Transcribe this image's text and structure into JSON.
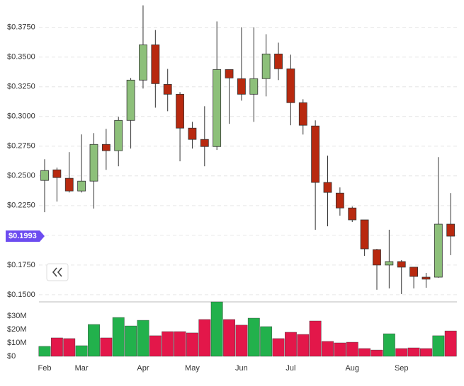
{
  "chart_data": [
    {
      "type": "candlestick",
      "categories": [
        "Feb",
        null,
        null,
        "Mar",
        null,
        null,
        null,
        null,
        "Apr",
        null,
        null,
        null,
        "May",
        null,
        null,
        null,
        "Jun",
        null,
        null,
        null,
        "Jul",
        null,
        null,
        null,
        null,
        "Aug",
        null,
        null,
        null,
        "Sep",
        null,
        null,
        null,
        null
      ],
      "open": [
        0.2462,
        0.2551,
        0.248,
        0.2373,
        0.2456,
        0.2765,
        0.2712,
        0.2967,
        0.3306,
        0.3603,
        0.327,
        0.3187,
        0.2902,
        0.2807,
        0.2747,
        0.3395,
        0.3318,
        0.3187,
        0.3318,
        0.3526,
        0.3401,
        0.3116,
        0.292,
        0.2445,
        0.2355,
        0.223,
        0.213,
        0.188,
        0.175,
        0.1779,
        0.1732,
        0.1648,
        0.1648,
        0.2094
      ],
      "high": [
        0.264,
        0.257,
        0.27,
        0.2849,
        0.286,
        0.2896,
        0.2997,
        0.3324,
        0.3935,
        0.3728,
        0.34,
        0.3205,
        0.2955,
        0.3086,
        0.3799,
        0.3395,
        0.3751,
        0.3751,
        0.3692,
        0.3621,
        0.352,
        0.3145,
        0.2967,
        0.267,
        0.2403,
        0.2242,
        0.213,
        0.1886,
        0.2047,
        0.1791,
        0.1732,
        0.1684,
        0.2658,
        0.2355
      ],
      "low": [
        0.2195,
        0.2284,
        0.236,
        0.236,
        0.2225,
        0.2551,
        0.2581,
        0.273,
        0.3235,
        0.3074,
        0.3044,
        0.2623,
        0.273,
        0.2581,
        0.2718,
        0.2938,
        0.3133,
        0.2955,
        0.3169,
        0.3306,
        0.2926,
        0.2848,
        0.2047,
        0.2076,
        0.2165,
        0.2112,
        0.1827,
        0.1542,
        0.1553,
        0.1506,
        0.1553,
        0.1559,
        0.1643,
        0.1833
      ],
      "close": [
        0.2545,
        0.2486,
        0.2373,
        0.2456,
        0.2765,
        0.2712,
        0.2967,
        0.3306,
        0.3603,
        0.3276,
        0.3187,
        0.2902,
        0.2807,
        0.2747,
        0.3395,
        0.3324,
        0.3187,
        0.3318,
        0.3526,
        0.3401,
        0.3116,
        0.2926,
        0.2445,
        0.2361,
        0.223,
        0.213,
        0.1886,
        0.175,
        0.1779,
        0.1732,
        0.1654,
        0.1631,
        0.2094,
        0.1993
      ],
      "up_color": "#8dc07a",
      "down_color": "#b8290f",
      "ylim": [
        0.144,
        0.398
      ],
      "yticks": [
        {
          "value": 0.15,
          "label": "$0.1500"
        },
        {
          "value": 0.175,
          "label": "$0.1750"
        },
        {
          "value": 0.2,
          "label": "$0.2000"
        },
        {
          "value": 0.225,
          "label": "$0.2250"
        },
        {
          "value": 0.25,
          "label": "$0.2500"
        },
        {
          "value": 0.275,
          "label": "$0.2750"
        },
        {
          "value": 0.3,
          "label": "$0.3000"
        },
        {
          "value": 0.325,
          "label": "$0.3250"
        },
        {
          "value": 0.35,
          "label": "$0.3500"
        },
        {
          "value": 0.375,
          "label": "$0.3750"
        }
      ],
      "grid": true,
      "last_price": {
        "value": 0.1993,
        "label": "$0.1993"
      },
      "last_price_color": "#6c4cf0"
    },
    {
      "type": "bar",
      "values": [
        7.4,
        13.7,
        13.2,
        7.9,
        23.7,
        13.7,
        28.9,
        22.6,
        26.8,
        15.3,
        18.4,
        18.4,
        17.4,
        27.4,
        40.5,
        27.4,
        23.2,
        28.4,
        22.1,
        13.2,
        17.9,
        16.3,
        26.3,
        11.1,
        10,
        10.5,
        5.8,
        4.7,
        16.8,
        5.8,
        6.3,
        5.8,
        15.3,
        18.9
      ],
      "up_color": "#22b14c",
      "down_color": "#e3174a",
      "ylim": [
        0,
        40.5
      ],
      "yticks": [
        {
          "value": 0,
          "label": "$0"
        },
        {
          "value": 10,
          "label": "$10M"
        },
        {
          "value": 20,
          "label": "$20M"
        },
        {
          "value": 30,
          "label": "$30M"
        }
      ]
    }
  ]
}
